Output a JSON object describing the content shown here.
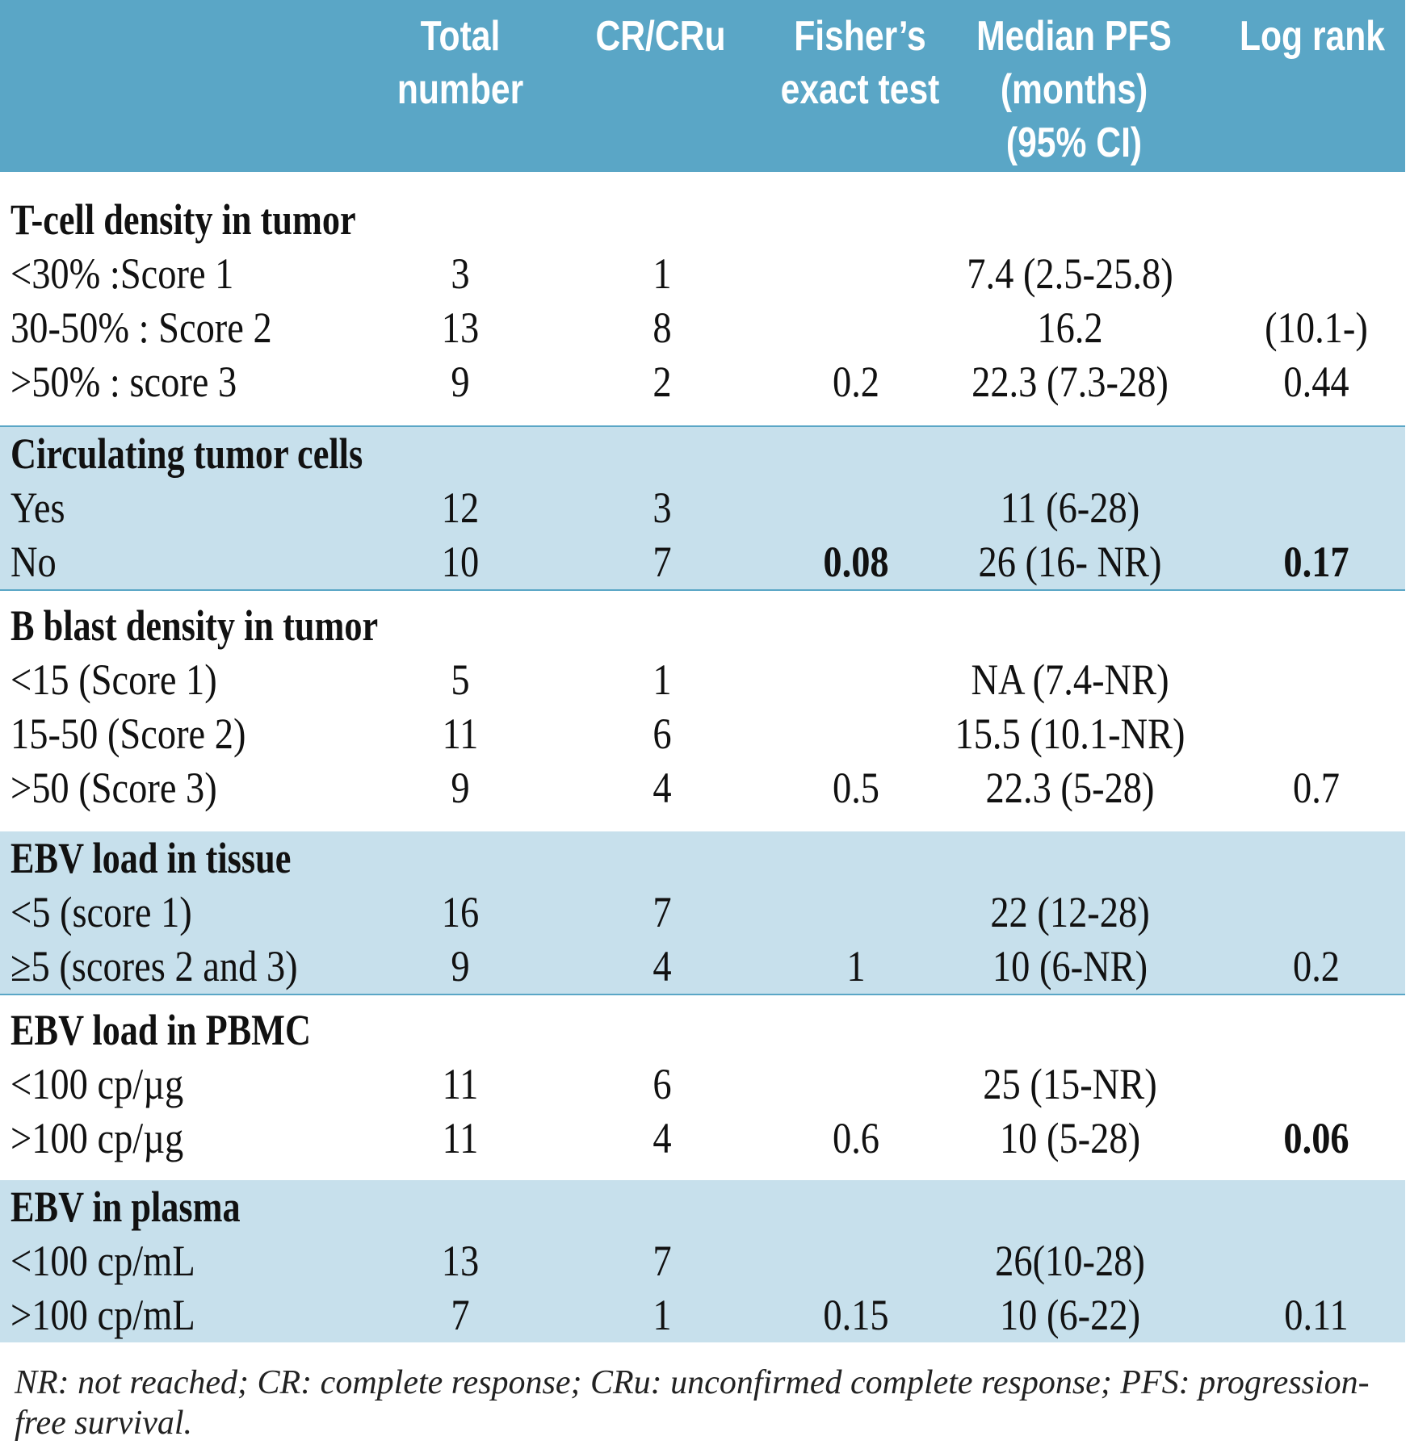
{
  "table": {
    "header": {
      "col0": "",
      "col1": [
        "Total",
        "number"
      ],
      "col2": [
        "CR/CRu"
      ],
      "col3": [
        "Fisher’s",
        "exact test"
      ],
      "col4": [
        "Median PFS",
        "(months)",
        "(95% CI)"
      ],
      "col5": [
        "Log rank"
      ]
    },
    "sections": [
      {
        "title": "T-cell density in tumor",
        "rows": [
          {
            "label": "<30% :Score 1",
            "total": "3",
            "cr": "1",
            "fisher": "",
            "pfs": "7.4 (2.5-25.8)",
            "logrank": ""
          },
          {
            "label": "30-50% : Score 2",
            "total": "13",
            "cr": "8",
            "fisher": "",
            "pfs": "16.2",
            "logrank": "(10.1-)"
          },
          {
            "label": ">50% : score 3",
            "total": "9",
            "cr": "2",
            "fisher": "0.2",
            "pfs": "22.3 (7.3-28)",
            "logrank": "0.44"
          }
        ]
      },
      {
        "title": "Circulating tumor cells",
        "rows": [
          {
            "label": "Yes",
            "total": "12",
            "cr": "3",
            "fisher": "",
            "pfs": "11 (6-28)",
            "logrank": ""
          },
          {
            "label": "No",
            "total": "10",
            "cr": "7",
            "fisher": "0.08",
            "pfs": "26 (16- NR)",
            "logrank": "0.17"
          }
        ]
      },
      {
        "title": "B blast density in tumor",
        "rows": [
          {
            "label": "<15 (Score 1)",
            "total": "5",
            "cr": "1",
            "fisher": "",
            "pfs": "NA (7.4-NR)",
            "logrank": ""
          },
          {
            "label": "15-50 (Score 2)",
            "total": "11",
            "cr": "6",
            "fisher": "",
            "pfs": "15.5 (10.1-NR)",
            "logrank": ""
          },
          {
            "label": ">50 (Score 3)",
            "total": "9",
            "cr": "4",
            "fisher": "0.5",
            "pfs": "22.3 (5-28)",
            "logrank": "0.7"
          }
        ]
      },
      {
        "title": "EBV load in tissue",
        "rows": [
          {
            "label": "<5 (score 1)",
            "total": "16",
            "cr": "7",
            "fisher": "",
            "pfs": "22 (12-28)",
            "logrank": ""
          },
          {
            "label": "≥5 (scores 2 and 3)",
            "total": "9",
            "cr": "4",
            "fisher": "1",
            "pfs": "10 (6-NR)",
            "logrank": "0.2"
          }
        ]
      },
      {
        "title": "EBV load in PBMC",
        "rows": [
          {
            "label": "<100 cp/µg",
            "total": "11",
            "cr": "6",
            "fisher": "",
            "pfs": "25 (15-NR)",
            "logrank": ""
          },
          {
            "label": ">100 cp/µg",
            "total": "11",
            "cr": "4",
            "fisher": "0.6",
            "pfs": "10 (5-28)",
            "logrank": "0.06"
          }
        ]
      },
      {
        "title": "EBV in plasma",
        "rows": [
          {
            "label": "<100 cp/mL",
            "total": "13",
            "cr": "7",
            "fisher": "",
            "pfs": "26(10-28)",
            "logrank": ""
          },
          {
            "label": ">100 cp/mL",
            "total": "7",
            "cr": "1",
            "fisher": "0.15",
            "pfs": "10 (6-22)",
            "logrank": "0.11"
          }
        ]
      }
    ]
  },
  "footnote": "NR: not reached; CR: complete response; CRu: unconfirmed complete response; PFS: progression-free survival."
}
